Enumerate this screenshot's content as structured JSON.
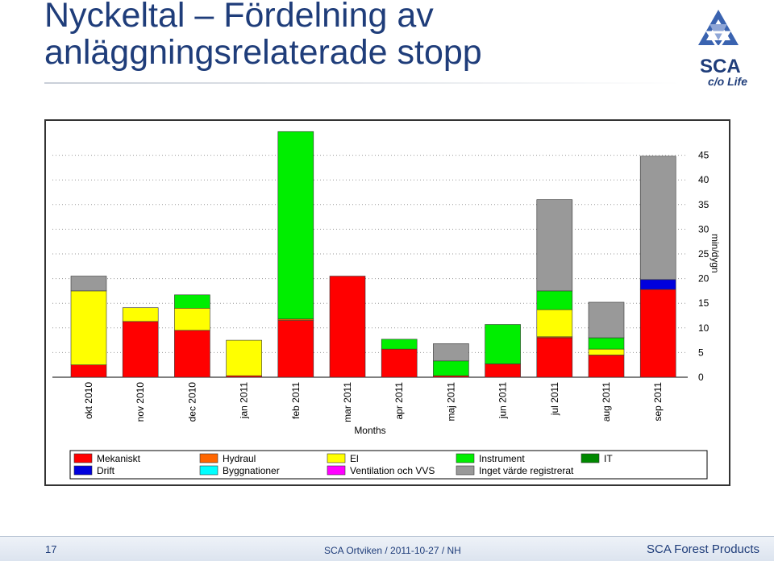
{
  "slide": {
    "title_line1": "Nyckeltal – Fördelning av",
    "title_line2": "anläggningsrelaterade stopp",
    "page_number": "17",
    "footer_center": "SCA Ortviken / 2011-10-27 / NH",
    "footer_right": "SCA Forest Products",
    "logo": {
      "text": "SCA",
      "tagline": "c/o Life",
      "icon": "sca-triangle-logo-icon"
    }
  },
  "chart_data": {
    "type": "bar",
    "stacked": true,
    "xlabel": "Months",
    "ylabel": "min/dygn",
    "ylim": [
      0,
      50
    ],
    "yticks": [
      0,
      5,
      10,
      15,
      20,
      25,
      30,
      35,
      40,
      45
    ],
    "y_axis_side": "right",
    "grid": "horizontal-dotted",
    "legend_position": "bottom",
    "categories": [
      "okt 2010",
      "nov 2010",
      "dec 2010",
      "jan 2011",
      "feb 2011",
      "mar 2011",
      "apr 2011",
      "maj 2011",
      "jun 2011",
      "jul 2011",
      "aug 2011",
      "sep 2011"
    ],
    "series": [
      {
        "name": "Mekaniskt",
        "color": "#ff0000",
        "values": [
          2.5,
          11.3,
          9.5,
          0.3,
          11.5,
          20.5,
          5.7,
          0.3,
          2.7,
          8.0,
          4.5,
          17.8
        ]
      },
      {
        "name": "Hydraul",
        "color": "#ff6600",
        "values": [
          0,
          0,
          0,
          0,
          0.3,
          0,
          0,
          0,
          0,
          0.2,
          0,
          0
        ]
      },
      {
        "name": "El",
        "color": "#ffff00",
        "values": [
          15.0,
          2.8,
          4.5,
          7.2,
          0,
          0,
          0,
          0,
          0,
          5.5,
          1.2,
          0
        ]
      },
      {
        "name": "Instrument",
        "color": "#00ee00",
        "values": [
          0,
          0,
          2.7,
          0,
          38.0,
          0,
          2.0,
          3.0,
          8.0,
          3.8,
          2.3,
          0
        ]
      },
      {
        "name": "IT",
        "color": "#008800",
        "values": [
          0,
          0,
          0,
          0,
          0,
          0,
          0,
          0,
          0,
          0,
          0,
          0
        ]
      },
      {
        "name": "Drift",
        "color": "#0000dd",
        "values": [
          0,
          0,
          0,
          0,
          0,
          0,
          0,
          0,
          0,
          0,
          0,
          2.0
        ]
      },
      {
        "name": "Byggnationer",
        "color": "#00ffff",
        "values": [
          0,
          0,
          0,
          0,
          0,
          0,
          0,
          0,
          0,
          0,
          0,
          0
        ]
      },
      {
        "name": "Ventilation och VVS",
        "color": "#ff00ff",
        "values": [
          0,
          0,
          0,
          0,
          0,
          0,
          0,
          0,
          0,
          0,
          0,
          0
        ]
      },
      {
        "name": "Inget värde registrerat",
        "color": "#999999",
        "values": [
          3.0,
          0,
          0,
          0,
          0,
          0,
          0,
          3.5,
          0,
          18.5,
          7.2,
          25.0
        ]
      }
    ]
  }
}
